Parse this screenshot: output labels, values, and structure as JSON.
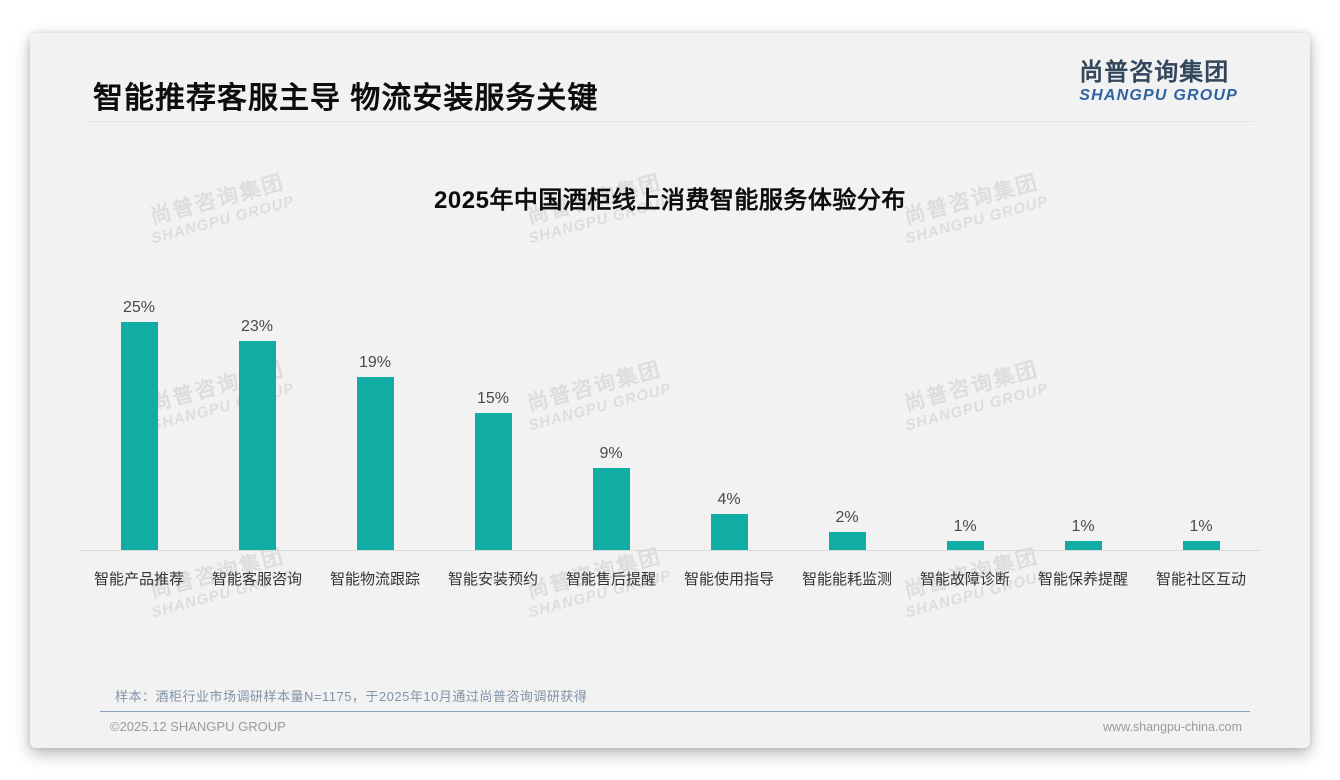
{
  "page": {
    "title": "智能推荐客服主导 物流安装服务关键",
    "note": "样本：酒柜行业市场调研样本量N=1175，于2025年10月通过尚普咨询调研获得",
    "footer_left": "©2025.12 SHANGPU GROUP",
    "footer_right": "www.shangpu-china.com"
  },
  "logo": {
    "cn": "尚普咨询集团",
    "en": "SHANGPU GROUP"
  },
  "watermark": {
    "cn": "尚普咨询集团",
    "en": "SHANGPU GROUP"
  },
  "colors": {
    "bar": "#11aca4",
    "logo_cn": "#32465c",
    "logo_en": "#2f62a0",
    "note_text": "#8093a8",
    "card_background": "#f2f2f2"
  },
  "chart_data": {
    "type": "bar",
    "title": "2025年中国酒柜线上消费智能服务体验分布",
    "categories": [
      "智能产品推荐",
      "智能客服咨询",
      "智能物流跟踪",
      "智能安装预约",
      "智能售后提醒",
      "智能使用指导",
      "智能能耗监测",
      "智能故障诊断",
      "智能保养提醒",
      "智能社区互动"
    ],
    "values": [
      25,
      23,
      19,
      15,
      9,
      4,
      2,
      1,
      1,
      1
    ],
    "value_labels": [
      "25%",
      "23%",
      "19%",
      "15%",
      "9%",
      "4%",
      "2%",
      "1%",
      "1%",
      "1%"
    ],
    "unit": "%",
    "xlabel": "",
    "ylabel": "",
    "ylim": [
      0,
      25
    ],
    "grid": false,
    "legend": "none",
    "bar_color": "#11aca4"
  }
}
